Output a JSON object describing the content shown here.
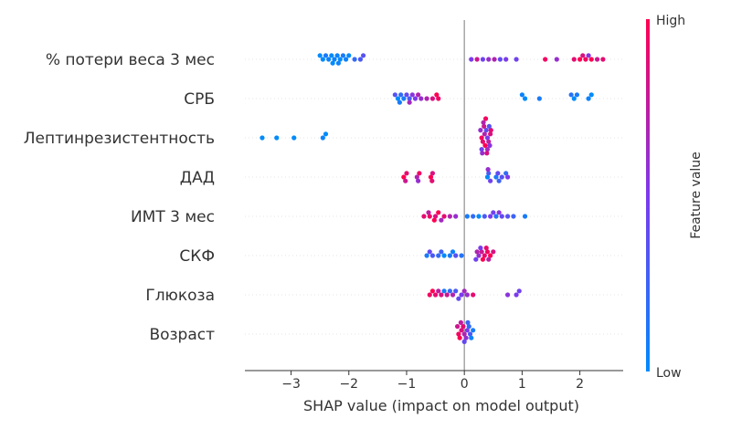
{
  "chart_data": {
    "type": "scatter",
    "title": "",
    "xlabel": "SHAP value (impact on model output)",
    "ylabel": "",
    "xlim": [
      -3.8,
      2.75
    ],
    "x_ticks": [
      -3,
      -2,
      -1,
      0,
      1,
      2
    ],
    "x_tick_labels": [
      "−3",
      "−2",
      "−1",
      "0",
      "1",
      "2"
    ],
    "grid": false,
    "zero_line": true,
    "colorbar": {
      "label": "Feature value",
      "high_label": "High",
      "low_label": "Low",
      "high_color": "#ff0052",
      "mid_color": "#7c3aed",
      "low_color": "#008bfb"
    },
    "features": [
      {
        "name": "% потери веса 3 мес",
        "points": [
          {
            "x": -2.45,
            "v": 0.0
          },
          {
            "x": -2.35,
            "v": 0.05
          },
          {
            "x": -2.25,
            "v": 0.05
          },
          {
            "x": -2.15,
            "v": 0.0
          },
          {
            "x": -2.05,
            "v": 0.05
          },
          {
            "x": -2.5,
            "v": 0.0
          },
          {
            "x": -2.4,
            "v": 0.1
          },
          {
            "x": -2.3,
            "v": 0.0
          },
          {
            "x": -2.2,
            "v": 0.05
          },
          {
            "x": -2.1,
            "v": 0.1
          },
          {
            "x": -2.0,
            "v": 0.0
          },
          {
            "x": -1.9,
            "v": 0.2
          },
          {
            "x": -1.8,
            "v": 0.3
          },
          {
            "x": -1.75,
            "v": 0.35
          },
          {
            "x": -2.28,
            "v": 0.0
          },
          {
            "x": -2.18,
            "v": 0.05
          },
          {
            "x": 0.12,
            "v": 0.5
          },
          {
            "x": 0.22,
            "v": 0.8
          },
          {
            "x": 0.32,
            "v": 0.45
          },
          {
            "x": 0.42,
            "v": 0.6
          },
          {
            "x": 0.52,
            "v": 0.7
          },
          {
            "x": 0.62,
            "v": 0.4
          },
          {
            "x": 0.72,
            "v": 0.5
          },
          {
            "x": 0.9,
            "v": 0.45
          },
          {
            "x": 1.4,
            "v": 0.95
          },
          {
            "x": 1.6,
            "v": 0.6
          },
          {
            "x": 1.9,
            "v": 0.9
          },
          {
            "x": 2.0,
            "v": 1.0
          },
          {
            "x": 2.1,
            "v": 0.95
          },
          {
            "x": 2.2,
            "v": 1.0
          },
          {
            "x": 2.3,
            "v": 0.8
          },
          {
            "x": 2.4,
            "v": 0.9
          },
          {
            "x": 2.15,
            "v": 0.55
          },
          {
            "x": 2.05,
            "v": 0.85
          }
        ]
      },
      {
        "name": "СРБ",
        "points": [
          {
            "x": -1.15,
            "v": 0.0
          },
          {
            "x": -1.05,
            "v": 0.1
          },
          {
            "x": -0.95,
            "v": 0.3
          },
          {
            "x": -0.85,
            "v": 0.5
          },
          {
            "x": -0.75,
            "v": 0.6
          },
          {
            "x": -0.65,
            "v": 0.7
          },
          {
            "x": -0.55,
            "v": 0.85
          },
          {
            "x": -0.45,
            "v": 0.95
          },
          {
            "x": -1.1,
            "v": 0.2
          },
          {
            "x": -1.0,
            "v": 0.4
          },
          {
            "x": -0.9,
            "v": 0.55
          },
          {
            "x": -0.8,
            "v": 0.7
          },
          {
            "x": -1.2,
            "v": 0.35
          },
          {
            "x": -0.48,
            "v": 1.0
          },
          {
            "x": -1.12,
            "v": 0.1
          },
          {
            "x": -0.95,
            "v": 0.65
          },
          {
            "x": 1.05,
            "v": 0.0
          },
          {
            "x": 1.3,
            "v": 0.1
          },
          {
            "x": 1.9,
            "v": 0.0
          },
          {
            "x": 2.15,
            "v": 0.05
          },
          {
            "x": 1.85,
            "v": 0.15
          },
          {
            "x": 2.2,
            "v": 0.0
          },
          {
            "x": 1.0,
            "v": 0.05
          },
          {
            "x": 1.95,
            "v": 0.1
          }
        ]
      },
      {
        "name": "Лептинрезистентность",
        "points": [
          {
            "x": -3.5,
            "v": 0.0
          },
          {
            "x": -3.25,
            "v": 0.0
          },
          {
            "x": -2.95,
            "v": 0.0
          },
          {
            "x": -2.45,
            "v": 0.05
          },
          {
            "x": -2.4,
            "v": 0.0
          },
          {
            "x": 0.3,
            "v": 0.95
          },
          {
            "x": 0.35,
            "v": 0.7
          },
          {
            "x": 0.4,
            "v": 0.5
          },
          {
            "x": 0.45,
            "v": 0.85
          },
          {
            "x": 0.32,
            "v": 0.9
          },
          {
            "x": 0.38,
            "v": 0.4
          },
          {
            "x": 0.42,
            "v": 0.75
          },
          {
            "x": 0.28,
            "v": 0.6
          },
          {
            "x": 0.36,
            "v": 1.0
          },
          {
            "x": 0.44,
            "v": 0.55
          },
          {
            "x": 0.34,
            "v": 0.8
          },
          {
            "x": 0.4,
            "v": 0.65
          },
          {
            "x": 0.3,
            "v": 0.45
          },
          {
            "x": 0.46,
            "v": 0.9
          },
          {
            "x": 0.33,
            "v": 0.7
          },
          {
            "x": 0.39,
            "v": 0.85
          },
          {
            "x": 0.43,
            "v": 0.35
          },
          {
            "x": 0.37,
            "v": 0.95
          },
          {
            "x": 0.31,
            "v": 0.6
          }
        ]
      },
      {
        "name": "ДАД",
        "points": [
          {
            "x": -1.05,
            "v": 1.0
          },
          {
            "x": -1.0,
            "v": 0.9
          },
          {
            "x": -0.82,
            "v": 0.7
          },
          {
            "x": -0.78,
            "v": 0.95
          },
          {
            "x": -0.58,
            "v": 1.0
          },
          {
            "x": -0.55,
            "v": 0.85
          },
          {
            "x": -1.02,
            "v": 0.8
          },
          {
            "x": -0.8,
            "v": 0.6
          },
          {
            "x": -0.56,
            "v": 0.9
          },
          {
            "x": 0.4,
            "v": 0.0
          },
          {
            "x": 0.42,
            "v": 0.3
          },
          {
            "x": 0.55,
            "v": 0.1
          },
          {
            "x": 0.58,
            "v": 0.4
          },
          {
            "x": 0.65,
            "v": 0.35
          },
          {
            "x": 0.72,
            "v": 0.2
          },
          {
            "x": 0.75,
            "v": 0.5
          },
          {
            "x": 0.45,
            "v": 0.45
          },
          {
            "x": 0.6,
            "v": 0.25
          },
          {
            "x": 0.41,
            "v": 0.6
          }
        ]
      },
      {
        "name": "ИМТ 3 мес",
        "points": [
          {
            "x": -0.7,
            "v": 0.9
          },
          {
            "x": -0.6,
            "v": 0.95
          },
          {
            "x": -0.5,
            "v": 0.85
          },
          {
            "x": -0.45,
            "v": 1.0
          },
          {
            "x": -0.35,
            "v": 0.9
          },
          {
            "x": -0.25,
            "v": 0.7
          },
          {
            "x": -0.15,
            "v": 0.6
          },
          {
            "x": -0.62,
            "v": 0.75
          },
          {
            "x": -0.52,
            "v": 1.0
          },
          {
            "x": 0.05,
            "v": 0.1
          },
          {
            "x": 0.15,
            "v": 0.2
          },
          {
            "x": 0.25,
            "v": 0.0
          },
          {
            "x": 0.35,
            "v": 0.3
          },
          {
            "x": 0.45,
            "v": 0.5
          },
          {
            "x": 0.55,
            "v": 0.15
          },
          {
            "x": 0.65,
            "v": 0.4
          },
          {
            "x": 0.75,
            "v": 0.35
          },
          {
            "x": 0.85,
            "v": 0.25
          },
          {
            "x": 1.05,
            "v": 0.1
          },
          {
            "x": 0.5,
            "v": 0.45
          },
          {
            "x": 0.6,
            "v": 0.55
          },
          {
            "x": -0.4,
            "v": 0.65
          }
        ]
      },
      {
        "name": "СКФ",
        "points": [
          {
            "x": -0.65,
            "v": 0.1
          },
          {
            "x": -0.55,
            "v": 0.3
          },
          {
            "x": -0.45,
            "v": 0.2
          },
          {
            "x": -0.35,
            "v": 0.0
          },
          {
            "x": -0.25,
            "v": 0.1
          },
          {
            "x": -0.15,
            "v": 0.35
          },
          {
            "x": -0.05,
            "v": 0.15
          },
          {
            "x": -0.6,
            "v": 0.4
          },
          {
            "x": -0.4,
            "v": 0.25
          },
          {
            "x": -0.2,
            "v": 0.05
          },
          {
            "x": 0.25,
            "v": 0.6
          },
          {
            "x": 0.3,
            "v": 0.8
          },
          {
            "x": 0.35,
            "v": 0.9
          },
          {
            "x": 0.4,
            "v": 0.95
          },
          {
            "x": 0.45,
            "v": 1.0
          },
          {
            "x": 0.5,
            "v": 0.85
          },
          {
            "x": 0.22,
            "v": 0.7
          },
          {
            "x": 0.32,
            "v": 1.0
          },
          {
            "x": 0.42,
            "v": 0.75
          },
          {
            "x": 0.28,
            "v": 0.5
          },
          {
            "x": 0.38,
            "v": 0.9
          },
          {
            "x": 0.2,
            "v": 0.45
          }
        ]
      },
      {
        "name": "Глюкоза",
        "points": [
          {
            "x": -0.6,
            "v": 0.95
          },
          {
            "x": -0.5,
            "v": 0.9
          },
          {
            "x": -0.4,
            "v": 0.85
          },
          {
            "x": -0.3,
            "v": 0.8
          },
          {
            "x": -0.2,
            "v": 0.7
          },
          {
            "x": -0.55,
            "v": 1.0
          },
          {
            "x": -0.45,
            "v": 0.75
          },
          {
            "x": -0.25,
            "v": 0.2
          },
          {
            "x": -0.15,
            "v": 0.3
          },
          {
            "x": -0.05,
            "v": 0.5
          },
          {
            "x": 0.05,
            "v": 0.6
          },
          {
            "x": 0.15,
            "v": 0.9
          },
          {
            "x": -0.35,
            "v": 0.1
          },
          {
            "x": 0.75,
            "v": 0.55
          },
          {
            "x": 0.9,
            "v": 0.5
          },
          {
            "x": 0.95,
            "v": 0.45
          },
          {
            "x": -0.1,
            "v": 0.4
          },
          {
            "x": 0.0,
            "v": 0.65
          }
        ]
      },
      {
        "name": "Возраст",
        "points": [
          {
            "x": -0.1,
            "v": 0.95
          },
          {
            "x": -0.05,
            "v": 0.85
          },
          {
            "x": 0.0,
            "v": 0.7
          },
          {
            "x": 0.05,
            "v": 0.5
          },
          {
            "x": 0.1,
            "v": 0.3
          },
          {
            "x": 0.15,
            "v": 0.1
          },
          {
            "x": -0.08,
            "v": 1.0
          },
          {
            "x": -0.02,
            "v": 0.9
          },
          {
            "x": 0.03,
            "v": 0.6
          },
          {
            "x": 0.08,
            "v": 0.2
          },
          {
            "x": -0.12,
            "v": 0.8
          },
          {
            "x": 0.12,
            "v": 0.05
          },
          {
            "x": 0.0,
            "v": 0.4
          },
          {
            "x": -0.06,
            "v": 0.75
          },
          {
            "x": 0.06,
            "v": 0.25
          }
        ]
      }
    ]
  }
}
